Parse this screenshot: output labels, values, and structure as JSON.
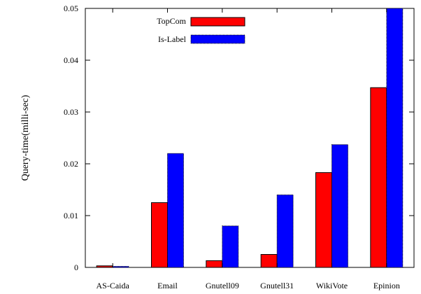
{
  "chart_data": {
    "type": "bar",
    "title": "",
    "xlabel": "",
    "ylabel": "Query-time(milli-sec)",
    "categories": [
      "AS-Caida",
      "Email",
      "Gnutell09",
      "Gnutell31",
      "WikiVote",
      "Epinion"
    ],
    "series": [
      {
        "name": "TopCom",
        "color": "#ff0000",
        "values": [
          0.0003,
          0.0125,
          0.0013,
          0.0025,
          0.0183,
          0.0347
        ]
      },
      {
        "name": "Is-Label",
        "color": "#0000ff",
        "values": [
          0.0002,
          0.022,
          0.008,
          0.014,
          0.0237,
          0.05
        ]
      }
    ],
    "ylim": [
      0,
      0.05
    ],
    "yticks": [
      "0",
      "0.01",
      "0.02",
      "0.03",
      "0.04",
      "0.05"
    ],
    "ytick_values": [
      0,
      0.01,
      0.02,
      0.03,
      0.04,
      0.05
    ],
    "grid": false,
    "legend": "top-left"
  }
}
